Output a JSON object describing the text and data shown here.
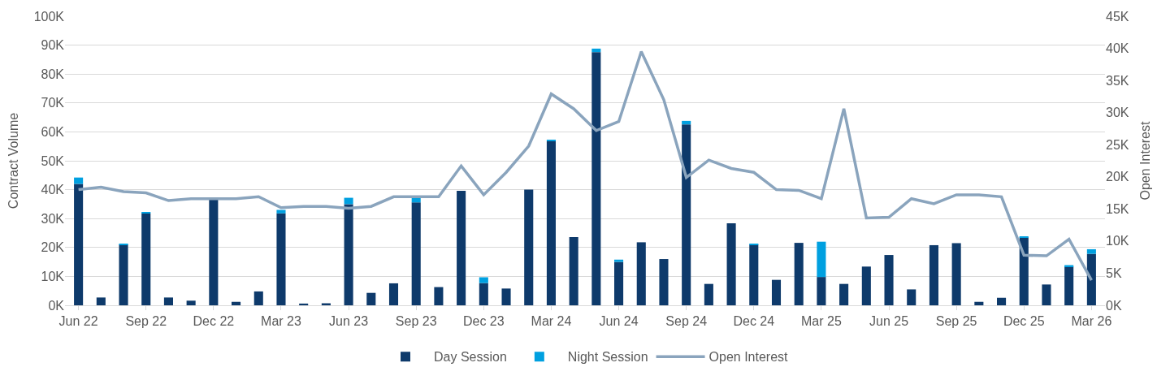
{
  "chart_data": {
    "type": "bar",
    "stacked": true,
    "categories": [
      "Jun 22",
      null,
      null,
      "Sep 22",
      null,
      null,
      "Dec 22",
      null,
      null,
      "Mar 23",
      null,
      null,
      "Jun 23",
      null,
      null,
      "Sep 23",
      null,
      null,
      "Dec 23",
      null,
      null,
      "Mar 24",
      null,
      null,
      "Jun 24",
      null,
      null,
      "Sep 24",
      null,
      null,
      "Dec 24",
      null,
      null,
      "Mar 25",
      null,
      null,
      "Jun 25",
      null,
      null,
      "Sep 25",
      null,
      null,
      "Dec 25",
      null,
      null,
      "Mar 26"
    ],
    "series": [
      {
        "name": "Day Session",
        "color": "#0e3a6b",
        "values": [
          42000,
          2700,
          21000,
          31800,
          2700,
          1600,
          37000,
          1200,
          4800,
          31800,
          600,
          700,
          35000,
          4300,
          7600,
          35600,
          6300,
          39600,
          7700,
          5800,
          40000,
          56800,
          23600,
          87600,
          15000,
          21800,
          16000,
          62600,
          7400,
          28400,
          21000,
          8800,
          21600,
          9800,
          7400,
          13400,
          17400,
          5500,
          20800,
          21500,
          1200,
          2600,
          23500,
          7200,
          13400,
          17800
        ]
      },
      {
        "name": "Night Session",
        "color": "#00a0e0",
        "values": [
          2200,
          0,
          300,
          300,
          0,
          0,
          null,
          0,
          0,
          1200,
          0,
          0,
          2200,
          0,
          0,
          1500,
          0,
          0,
          2000,
          0,
          0,
          300,
          0,
          1200,
          800,
          0,
          0,
          1200,
          0,
          0,
          300,
          0,
          0,
          12200,
          0,
          0,
          0,
          0,
          0,
          0,
          0,
          0,
          300,
          0,
          500,
          1600
        ]
      },
      {
        "name": "Open Interest",
        "type": "line",
        "axis": "y2",
        "color": "#8aa4bd",
        "values": [
          18000,
          18400,
          17700,
          17500,
          16300,
          16600,
          16600,
          16600,
          16900,
          15200,
          15400,
          15400,
          15100,
          15400,
          16900,
          16900,
          16900,
          21700,
          17200,
          20700,
          24800,
          32900,
          30600,
          27200,
          28600,
          39500,
          32000,
          19900,
          22600,
          21300,
          20700,
          18000,
          17900,
          16600,
          30600,
          13600,
          13700,
          16600,
          15800,
          17200,
          17200,
          16900,
          7800,
          7700,
          10300,
          3900
        ]
      }
    ],
    "ylabel": "Contract Volume",
    "y2label": "Open Interest",
    "ylim": [
      0,
      100000
    ],
    "yticks": [
      {
        "value": 0,
        "label": "0K"
      },
      {
        "value": 10000,
        "label": "10K"
      },
      {
        "value": 20000,
        "label": "20K"
      },
      {
        "value": 30000,
        "label": "30K"
      },
      {
        "value": 40000,
        "label": "40K"
      },
      {
        "value": 50000,
        "label": "50K"
      },
      {
        "value": 60000,
        "label": "60K"
      },
      {
        "value": 70000,
        "label": "70K"
      },
      {
        "value": 80000,
        "label": "80K"
      },
      {
        "value": 90000,
        "label": "90K"
      },
      {
        "value": 100000,
        "label": "100K"
      }
    ],
    "y2lim": [
      0,
      45000
    ],
    "y2ticks": [
      {
        "value": 0,
        "label": "0K"
      },
      {
        "value": 5000,
        "label": "5K"
      },
      {
        "value": 10000,
        "label": "10K"
      },
      {
        "value": 15000,
        "label": "15K"
      },
      {
        "value": 20000,
        "label": "20K"
      },
      {
        "value": 25000,
        "label": "25K"
      },
      {
        "value": 30000,
        "label": "30K"
      },
      {
        "value": 35000,
        "label": "35K"
      },
      {
        "value": 40000,
        "label": "40K"
      },
      {
        "value": 45000,
        "label": "45K"
      }
    ],
    "grid": "y",
    "legend": "bottom"
  }
}
